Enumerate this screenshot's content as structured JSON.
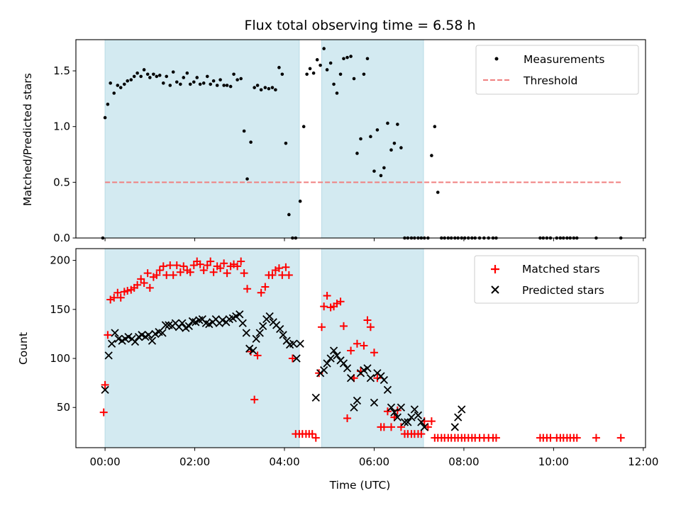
{
  "chart_data": {
    "type": "scatter",
    "title": "Flux total observing time = 6.58 h",
    "xlabel": "Time (UTC)",
    "x_unit": "hours UTC",
    "xlim": [
      -0.65,
      12.05
    ],
    "xticks": [
      0,
      2,
      4,
      6,
      8,
      10,
      12
    ],
    "xtick_labels": [
      "00:00",
      "02:00",
      "04:00",
      "06:00",
      "08:00",
      "10:00",
      "12:00"
    ],
    "observing_windows": [
      [
        0.0,
        4.33
      ],
      [
        4.83,
        7.1
      ]
    ],
    "window_color": "#d3eaf1",
    "top": {
      "ylabel": "Matched/Predicted stars",
      "ylim": [
        0,
        1.78
      ],
      "yticks": [
        0.0,
        0.5,
        1.0,
        1.5
      ],
      "ytick_labels": [
        "0.0",
        "0.5",
        "1.0",
        "1.5"
      ],
      "legend": {
        "placement": "top-right",
        "entries": [
          "Measurements",
          "Threshold"
        ]
      },
      "threshold": {
        "name": "Threshold",
        "value": 0.5,
        "x_range": [
          0.0,
          11.5
        ],
        "color": "#f08080",
        "style": "dashed"
      },
      "series": [
        {
          "name": "Measurements",
          "marker": "dot",
          "color": "#000000",
          "x": [
            -0.05,
            0.0,
            0.06,
            0.12,
            0.2,
            0.28,
            0.35,
            0.43,
            0.5,
            0.58,
            0.65,
            0.72,
            0.8,
            0.87,
            0.95,
            1.0,
            1.08,
            1.15,
            1.22,
            1.3,
            1.37,
            1.45,
            1.52,
            1.6,
            1.68,
            1.75,
            1.83,
            1.9,
            1.98,
            2.05,
            2.12,
            2.2,
            2.28,
            2.35,
            2.42,
            2.5,
            2.57,
            2.65,
            2.72,
            2.8,
            2.87,
            2.95,
            3.03,
            3.1,
            3.17,
            3.25,
            3.33,
            3.4,
            3.48,
            3.57,
            3.65,
            3.73,
            3.8,
            3.88,
            3.95,
            4.03,
            4.1,
            4.18,
            4.25,
            4.35,
            4.43,
            4.5,
            4.57,
            4.65,
            4.73,
            4.8,
            4.88,
            4.95,
            5.03,
            5.1,
            5.17,
            5.25,
            5.32,
            5.4,
            5.48,
            5.55,
            5.62,
            5.7,
            5.77,
            5.85,
            5.92,
            6.0,
            6.07,
            6.15,
            6.22,
            6.3,
            6.38,
            6.45,
            6.52,
            6.6,
            6.68,
            6.75,
            6.83,
            6.9,
            6.98,
            7.05,
            7.12,
            7.2,
            7.28,
            7.35,
            7.42,
            7.5,
            7.57,
            7.65,
            7.72,
            7.8,
            7.87,
            7.95,
            8.02,
            8.1,
            8.18,
            8.25,
            8.35,
            8.45,
            8.55,
            8.65,
            8.72,
            9.7,
            9.77,
            9.85,
            9.93,
            10.07,
            10.15,
            10.22,
            10.3,
            10.37,
            10.45,
            10.52,
            10.95,
            11.5
          ],
          "y": [
            0.0,
            1.08,
            1.2,
            1.39,
            1.3,
            1.37,
            1.35,
            1.38,
            1.41,
            1.42,
            1.45,
            1.48,
            1.45,
            1.51,
            1.47,
            1.44,
            1.47,
            1.45,
            1.46,
            1.39,
            1.45,
            1.37,
            1.49,
            1.4,
            1.38,
            1.44,
            1.48,
            1.38,
            1.4,
            1.44,
            1.38,
            1.39,
            1.45,
            1.38,
            1.41,
            1.37,
            1.42,
            1.37,
            1.37,
            1.36,
            1.47,
            1.42,
            1.43,
            0.96,
            0.53,
            0.86,
            1.35,
            1.37,
            1.33,
            1.35,
            1.34,
            1.35,
            1.33,
            1.53,
            1.47,
            0.85,
            0.21,
            0.0,
            0.0,
            0.33,
            1.0,
            1.47,
            1.52,
            1.48,
            1.6,
            1.55,
            1.7,
            1.51,
            1.57,
            1.38,
            1.3,
            1.47,
            1.61,
            1.62,
            1.63,
            1.43,
            0.76,
            0.89,
            1.47,
            1.61,
            0.91,
            0.6,
            0.97,
            0.56,
            0.63,
            1.03,
            0.79,
            0.85,
            1.02,
            0.81,
            0.0,
            0.0,
            0.0,
            0.0,
            0.0,
            0.0,
            0.0,
            0.0,
            0.74,
            1.0,
            0.41,
            0.0,
            0.0,
            0.0,
            0.0,
            0.0,
            0.0,
            0.0,
            0.0,
            0.0,
            0.0,
            0.0,
            0.0,
            0.0,
            0.0,
            0.0,
            0.0,
            0.0,
            0.0,
            0.0,
            0.0,
            0.0,
            0.0,
            0.0,
            0.0,
            0.0,
            0.0,
            0.0,
            0.0,
            0.0
          ]
        }
      ]
    },
    "bottom": {
      "ylabel": "Count",
      "ylim": [
        9,
        212
      ],
      "yticks": [
        50,
        100,
        150,
        200
      ],
      "ytick_labels": [
        "50",
        "100",
        "150",
        "200"
      ],
      "legend": {
        "placement": "top-right",
        "entries": [
          "Matched stars",
          "Predicted stars"
        ]
      },
      "series": [
        {
          "name": "Matched stars",
          "marker": "plus",
          "color": "#ff0000",
          "x": [
            -0.03,
            0.0,
            0.06,
            0.12,
            0.2,
            0.28,
            0.35,
            0.43,
            0.5,
            0.58,
            0.65,
            0.72,
            0.8,
            0.87,
            0.95,
            1.0,
            1.08,
            1.15,
            1.22,
            1.3,
            1.37,
            1.45,
            1.52,
            1.6,
            1.68,
            1.75,
            1.83,
            1.9,
            1.98,
            2.05,
            2.12,
            2.2,
            2.28,
            2.35,
            2.42,
            2.5,
            2.57,
            2.65,
            2.72,
            2.8,
            2.87,
            2.95,
            3.03,
            3.1,
            3.17,
            3.25,
            3.33,
            3.4,
            3.48,
            3.57,
            3.65,
            3.73,
            3.8,
            3.88,
            3.95,
            4.03,
            4.1,
            4.18,
            4.25,
            4.33,
            4.4,
            4.48,
            4.55,
            4.62,
            4.7,
            4.77,
            4.83,
            4.88,
            4.95,
            5.03,
            5.1,
            5.17,
            5.25,
            5.32,
            5.4,
            5.48,
            5.55,
            5.62,
            5.7,
            5.77,
            5.85,
            5.92,
            6.0,
            6.07,
            6.15,
            6.22,
            6.3,
            6.38,
            6.45,
            6.52,
            6.6,
            6.68,
            6.75,
            6.83,
            6.9,
            6.98,
            7.05,
            7.12,
            7.2,
            7.28,
            7.35,
            7.42,
            7.5,
            7.57,
            7.65,
            7.72,
            7.8,
            7.87,
            7.95,
            8.02,
            8.1,
            8.18,
            8.25,
            8.35,
            8.45,
            8.55,
            8.65,
            8.72,
            9.7,
            9.77,
            9.85,
            9.93,
            10.07,
            10.15,
            10.22,
            10.3,
            10.37,
            10.45,
            10.52,
            10.95,
            11.5
          ],
          "y": [
            45,
            73,
            124,
            160,
            162,
            167,
            162,
            168,
            169,
            170,
            172,
            175,
            181,
            177,
            187,
            172,
            183,
            185,
            190,
            194,
            185,
            195,
            185,
            195,
            188,
            194,
            190,
            188,
            195,
            199,
            196,
            190,
            195,
            199,
            188,
            194,
            192,
            197,
            187,
            194,
            196,
            194,
            199,
            187,
            171,
            107,
            58,
            103,
            167,
            173,
            185,
            185,
            190,
            192,
            185,
            193,
            185,
            100,
            23,
            23,
            23,
            23,
            23,
            23,
            19,
            85,
            132,
            153,
            164,
            152,
            153,
            156,
            158,
            133,
            39,
            108,
            80,
            115,
            87,
            113,
            139,
            132,
            106,
            80,
            30,
            30,
            46,
            30,
            40,
            47,
            30,
            23,
            23,
            23,
            23,
            23,
            23,
            36,
            30,
            36,
            19,
            19,
            19,
            19,
            19,
            19,
            19,
            19,
            19,
            19,
            19,
            19,
            19,
            19,
            19,
            19,
            19,
            19,
            19,
            19,
            19,
            19,
            19,
            19,
            19,
            19,
            19,
            19,
            19,
            19,
            19
          ]
        },
        {
          "name": "Predicted stars",
          "marker": "x",
          "color": "#000000",
          "x": [
            0.0,
            0.08,
            0.15,
            0.22,
            0.3,
            0.38,
            0.45,
            0.52,
            0.6,
            0.67,
            0.75,
            0.82,
            0.9,
            0.97,
            1.05,
            1.12,
            1.2,
            1.28,
            1.35,
            1.42,
            1.5,
            1.57,
            1.65,
            1.72,
            1.8,
            1.87,
            1.95,
            2.02,
            2.1,
            2.17,
            2.25,
            2.32,
            2.4,
            2.47,
            2.55,
            2.62,
            2.7,
            2.77,
            2.85,
            2.92,
            3.0,
            3.07,
            3.15,
            3.22,
            3.3,
            3.37,
            3.45,
            3.52,
            3.6,
            3.67,
            3.75,
            3.82,
            3.9,
            3.97,
            4.05,
            4.12,
            4.2,
            4.27,
            4.35,
            4.7,
            4.8,
            4.88,
            4.95,
            5.03,
            5.1,
            5.17,
            5.25,
            5.32,
            5.4,
            5.48,
            5.55,
            5.62,
            5.7,
            5.77,
            5.85,
            5.92,
            6.0,
            6.07,
            6.15,
            6.22,
            6.3,
            6.38,
            6.45,
            6.52,
            6.6,
            6.68,
            6.75,
            6.83,
            6.9,
            6.98,
            7.05,
            7.12,
            7.8,
            7.87,
            7.95
          ],
          "y": [
            68,
            103,
            115,
            126,
            120,
            118,
            120,
            122,
            120,
            117,
            122,
            124,
            122,
            124,
            118,
            125,
            127,
            126,
            134,
            134,
            133,
            136,
            132,
            136,
            131,
            133,
            138,
            137,
            139,
            140,
            136,
            135,
            137,
            140,
            136,
            139,
            137,
            140,
            141,
            143,
            145,
            136,
            126,
            110,
            108,
            120,
            126,
            133,
            140,
            143,
            137,
            134,
            130,
            124,
            118,
            114,
            115,
            100,
            115,
            60,
            85,
            88,
            95,
            100,
            108,
            103,
            98,
            95,
            90,
            80,
            50,
            57,
            85,
            88,
            90,
            80,
            55,
            85,
            82,
            78,
            68,
            50,
            45,
            40,
            50,
            35,
            35,
            40,
            48,
            42,
            35,
            30,
            30,
            40,
            48
          ]
        }
      ]
    }
  }
}
